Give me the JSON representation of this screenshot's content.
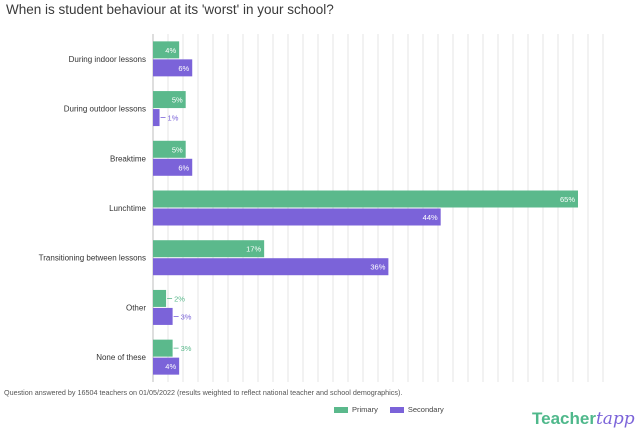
{
  "title": "When is student behaviour at its 'worst' in your school?",
  "footnote": "Question answered by 16504 teachers on 01/05/2022 (results weighted to reflect national teacher and school demographics).",
  "logo": {
    "part1": "Teacher",
    "part2": "tapp"
  },
  "colors": {
    "primary": "#5bb98c",
    "secondary": "#7b63d9",
    "grid": "#e4e4e4"
  },
  "legend": [
    {
      "label": "Primary",
      "color": "#5bb98c"
    },
    {
      "label": "Secondary",
      "color": "#7b63d9"
    }
  ],
  "chart_data": {
    "type": "bar",
    "orientation": "horizontal",
    "categories": [
      "During indoor lessons",
      "During outdoor lessons",
      "Breaktime",
      "Lunchtime",
      "Transitioning between lessons",
      "Other",
      "None of these"
    ],
    "series": [
      {
        "name": "Primary",
        "values": [
          4,
          5,
          5,
          65,
          17,
          2,
          3
        ],
        "labels": [
          "4%",
          "5%",
          "5%",
          "65%",
          "17%",
          "2%",
          "3%"
        ]
      },
      {
        "name": "Secondary",
        "values": [
          6,
          1,
          6,
          44,
          36,
          3,
          4
        ],
        "labels": [
          "6%",
          "1%",
          "6%",
          "44%",
          "36%",
          "3%",
          "4%"
        ]
      }
    ],
    "xlim": [
      0,
      70
    ],
    "grid": true,
    "legend_position": "bottom"
  }
}
